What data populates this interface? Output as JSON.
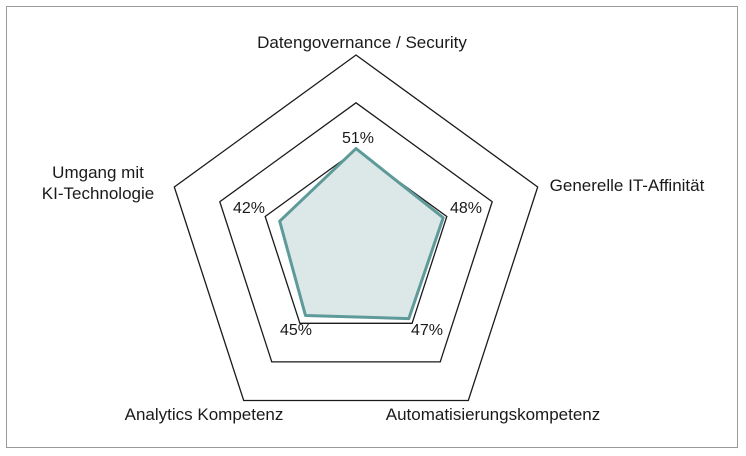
{
  "chart_data": {
    "type": "radar",
    "axes": [
      {
        "label_lines": [
          "Datengovernance / Security"
        ],
        "value": 51,
        "value_label": "51%"
      },
      {
        "label_lines": [
          "Generelle IT-Affinität"
        ],
        "value": 48,
        "value_label": "48%"
      },
      {
        "label_lines": [
          "Automatisierungskompetenz"
        ],
        "value": 47,
        "value_label": "47%"
      },
      {
        "label_lines": [
          "Analytics Kompetenz"
        ],
        "value": 45,
        "value_label": "45%"
      },
      {
        "label_lines": [
          "Umgang mit",
          "KI-Technologie"
        ],
        "value": 42,
        "value_label": "42%"
      }
    ],
    "rings": [
      50,
      75,
      100
    ],
    "scale_max": 100,
    "colors": {
      "fill": "#dce8e8",
      "line": "#5f9a9a",
      "grid": "#1a1a1a"
    }
  }
}
